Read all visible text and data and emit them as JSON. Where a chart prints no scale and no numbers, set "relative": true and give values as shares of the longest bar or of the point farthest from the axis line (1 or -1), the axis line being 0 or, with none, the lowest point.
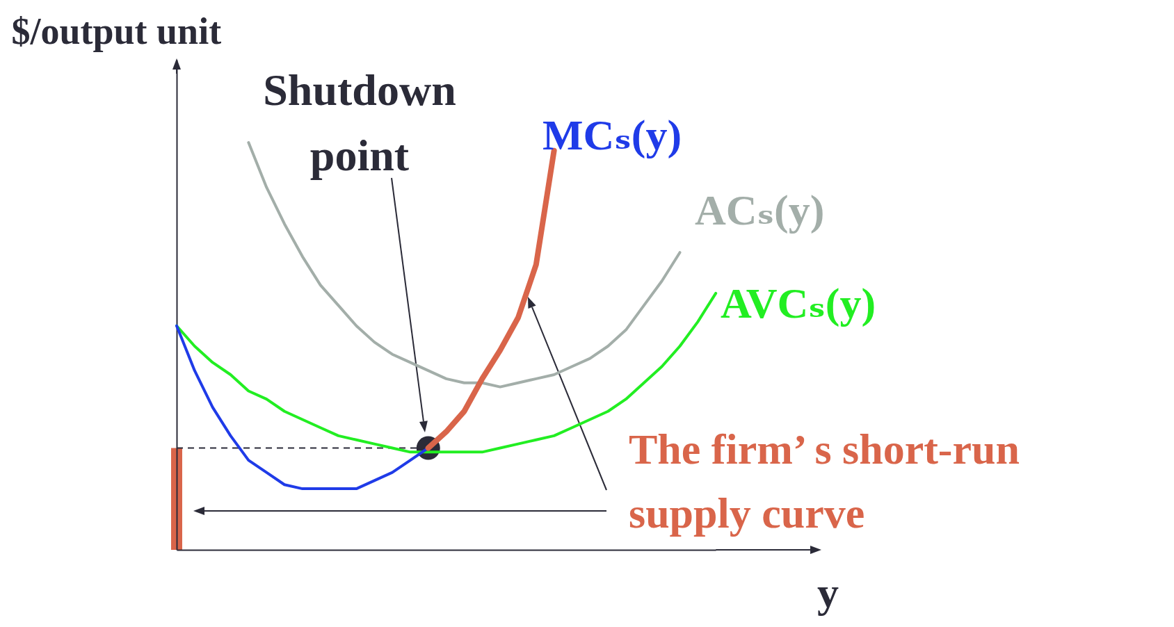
{
  "chart_data": {
    "type": "line",
    "relative": true,
    "xlabel": "y",
    "ylabel": "$/output unit",
    "grid": false,
    "legend": false,
    "categories": [
      null,
      null,
      null,
      null,
      null,
      null,
      null,
      null,
      null,
      null,
      null,
      null,
      null,
      null,
      null,
      null,
      null,
      null,
      null,
      null,
      null,
      null,
      null,
      null,
      null,
      null,
      null,
      null,
      null,
      null,
      null
    ],
    "series": [
      {
        "name": "ACₛ(y)",
        "color": "#a3aea9",
        "values": [
          null,
          null,
          null,
          null,
          1.0,
          0.89,
          0.8,
          0.72,
          0.65,
          0.6,
          0.55,
          0.51,
          0.48,
          0.46,
          0.44,
          0.42,
          0.41,
          0.41,
          0.4,
          0.41,
          0.42,
          0.43,
          0.45,
          0.47,
          0.5,
          0.54,
          0.6,
          0.66,
          0.73,
          null,
          null
        ]
      },
      {
        "name": "AVCₛ(y)",
        "color": "#22ee22",
        "values": [
          0.55,
          0.5,
          0.46,
          0.43,
          0.39,
          0.37,
          0.34,
          0.32,
          0.3,
          0.28,
          0.27,
          0.26,
          0.25,
          0.24,
          0.24,
          0.24,
          0.24,
          0.24,
          0.25,
          0.26,
          0.27,
          0.28,
          0.3,
          0.32,
          0.34,
          0.37,
          0.41,
          0.45,
          0.5,
          0.56,
          0.63
        ]
      },
      {
        "name": "MCₛ(y)",
        "color": "#1f3be8",
        "values": [
          0.55,
          0.44,
          0.35,
          0.28,
          0.22,
          0.19,
          0.16,
          0.15,
          0.15,
          0.15,
          0.15,
          0.17,
          0.19,
          0.22,
          0.25,
          null,
          null,
          null,
          null,
          null,
          null,
          null,
          null,
          null,
          null,
          null,
          null,
          null,
          null,
          null,
          null
        ]
      },
      {
        "name": "The firm’ s short-run supply curve",
        "color": "#d9654a",
        "values": [
          null,
          null,
          null,
          null,
          null,
          null,
          null,
          null,
          null,
          null,
          null,
          null,
          null,
          null,
          0.25,
          0.29,
          0.34,
          0.42,
          0.49,
          0.57,
          0.7,
          0.98,
          null,
          null,
          null,
          null,
          null,
          null,
          null,
          null,
          null
        ]
      }
    ],
    "ref_lines": [
      {
        "axis": "y",
        "value": 0.25,
        "line_style": "dashed",
        "color": "#2b2b38"
      }
    ],
    "annotations": [
      "Shutdown point"
    ]
  }
}
